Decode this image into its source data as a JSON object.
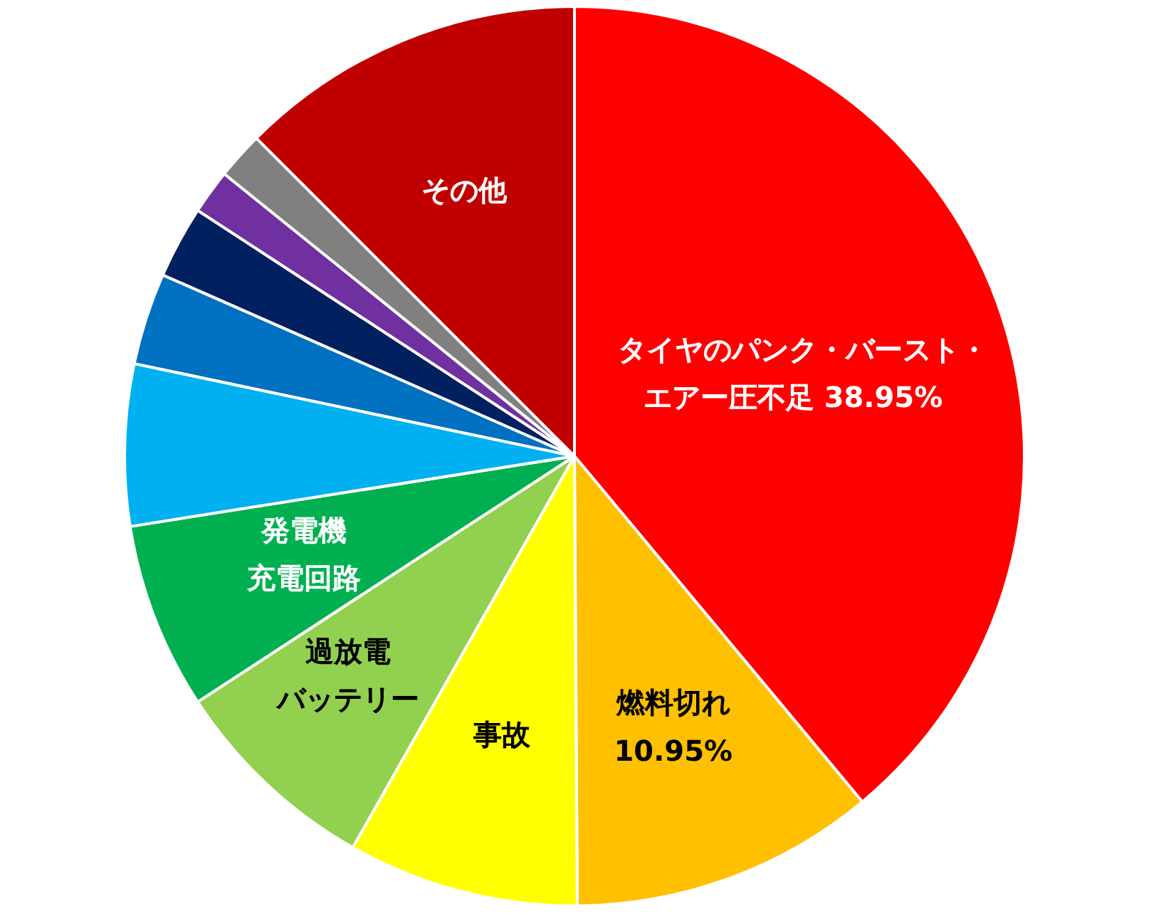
{
  "chart_data": {
    "type": "pie",
    "categories": [
      "タイヤのパンク・バースト・エアー圧不足",
      "燃料切れ",
      "事故",
      "過放電バッテリー",
      "発電機充電回路",
      null,
      null,
      null,
      null,
      null,
      "その他"
    ],
    "values": [
      38.95,
      10.95,
      8.3,
      7.6,
      6.7,
      5.8,
      3.3,
      2.6,
      1.6,
      1.7,
      12.5
    ],
    "value_labels": [
      "38.95%",
      "10.95%",
      null,
      null,
      null,
      null,
      null,
      null,
      null,
      null,
      null
    ],
    "colors": [
      "#ff0000",
      "#ffc000",
      "#ffff00",
      "#92d050",
      "#00b050",
      "#00b0f0",
      "#0070c0",
      "#002060",
      "#7030a0",
      "#808080",
      "#c00000"
    ]
  }
}
